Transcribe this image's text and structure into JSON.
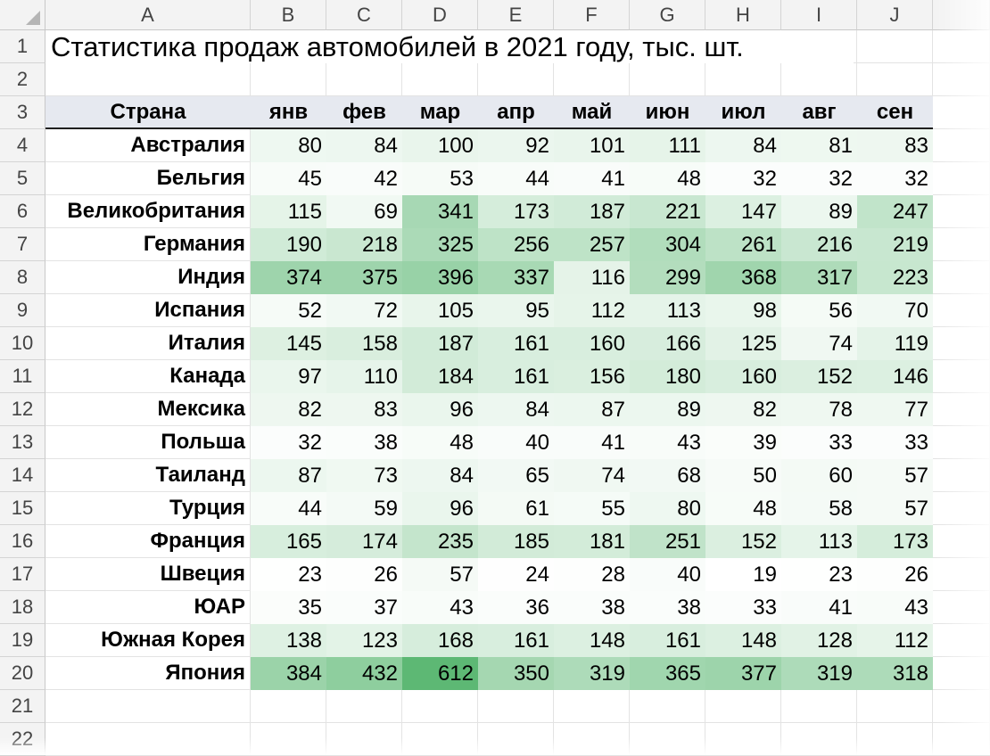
{
  "column_letters": [
    "A",
    "B",
    "C",
    "D",
    "E",
    "F",
    "G",
    "H",
    "I",
    "J"
  ],
  "row_numbers": [
    "1",
    "2",
    "3",
    "4",
    "5",
    "6",
    "7",
    "8",
    "9",
    "10",
    "11",
    "12",
    "13",
    "14",
    "15",
    "16",
    "17",
    "18",
    "19",
    "20",
    "21",
    "22"
  ],
  "title": "Статистика продаж автомобилей в 2021 году, тыс. шт.",
  "table": {
    "headers": [
      "Страна",
      "янв",
      "фев",
      "мар",
      "апр",
      "май",
      "июн",
      "июл",
      "авг",
      "сен"
    ],
    "rows": [
      {
        "country": "Австралия",
        "values": [
          80,
          84,
          100,
          92,
          101,
          111,
          84,
          81,
          83
        ]
      },
      {
        "country": "Бельгия",
        "values": [
          45,
          42,
          53,
          44,
          41,
          48,
          32,
          32,
          32
        ]
      },
      {
        "country": "Великобритания",
        "values": [
          115,
          69,
          341,
          173,
          187,
          221,
          147,
          89,
          247
        ]
      },
      {
        "country": "Германия",
        "values": [
          190,
          218,
          325,
          256,
          257,
          304,
          261,
          216,
          219
        ]
      },
      {
        "country": "Индия",
        "values": [
          374,
          375,
          396,
          337,
          116,
          299,
          368,
          317,
          223
        ]
      },
      {
        "country": "Испания",
        "values": [
          52,
          72,
          105,
          95,
          112,
          113,
          98,
          56,
          70
        ]
      },
      {
        "country": "Италия",
        "values": [
          145,
          158,
          187,
          161,
          160,
          166,
          125,
          74,
          119
        ]
      },
      {
        "country": "Канада",
        "values": [
          97,
          110,
          184,
          161,
          156,
          180,
          160,
          152,
          146
        ]
      },
      {
        "country": "Мексика",
        "values": [
          82,
          83,
          96,
          84,
          87,
          89,
          82,
          78,
          77
        ]
      },
      {
        "country": "Польша",
        "values": [
          32,
          38,
          48,
          40,
          41,
          43,
          39,
          33,
          33
        ]
      },
      {
        "country": "Таиланд",
        "values": [
          87,
          73,
          84,
          65,
          74,
          68,
          50,
          60,
          57
        ]
      },
      {
        "country": "Турция",
        "values": [
          44,
          59,
          96,
          61,
          55,
          80,
          48,
          58,
          57
        ]
      },
      {
        "country": "Франция",
        "values": [
          165,
          174,
          235,
          185,
          181,
          251,
          152,
          113,
          173
        ]
      },
      {
        "country": "Швеция",
        "values": [
          23,
          26,
          57,
          24,
          28,
          40,
          19,
          23,
          26
        ]
      },
      {
        "country": "ЮАР",
        "values": [
          35,
          37,
          43,
          36,
          38,
          38,
          33,
          41,
          43
        ]
      },
      {
        "country": "Южная Корея",
        "values": [
          138,
          123,
          168,
          161,
          148,
          161,
          148,
          128,
          112
        ]
      },
      {
        "country": "Япония",
        "values": [
          384,
          432,
          612,
          350,
          319,
          365,
          377,
          319,
          318
        ]
      }
    ]
  },
  "colors": {
    "header_bg": "#e6e9f0",
    "header_border": "#1f1f1f",
    "scale_min": "#ffffff",
    "scale_max": "#5db874",
    "grid": "#e3e3e3",
    "sheet_header_bg": "#f3f3f3"
  }
}
